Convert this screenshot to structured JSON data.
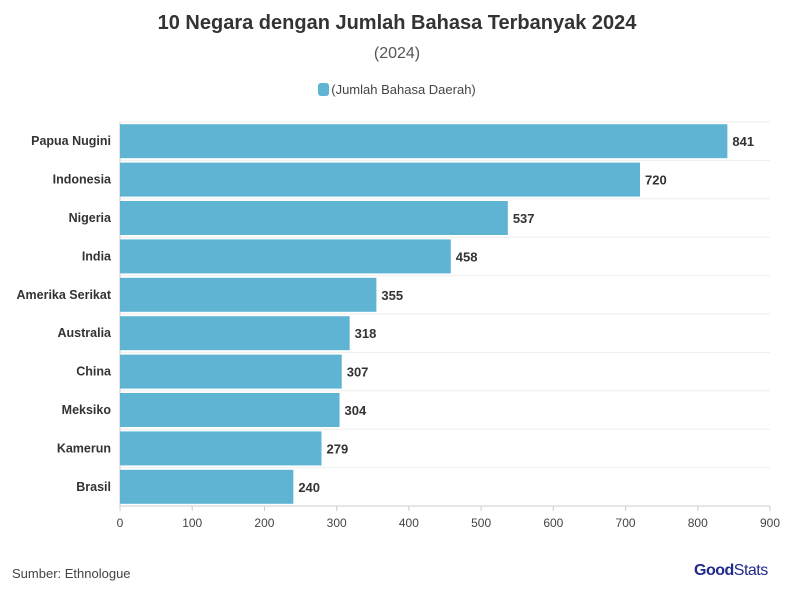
{
  "chart_data": {
    "type": "bar",
    "title": "10 Negara dengan Jumlah Bahasa Terbanyak 2024",
    "subtitle": "(2024)",
    "legend": [
      "(Jumlah Bahasa Daerah)"
    ],
    "legend_placement": "top-center",
    "categories": [
      "Papua Nugini",
      "Indonesia",
      "Nigeria",
      "India",
      "Amerika Serikat",
      "Australia",
      "China",
      "Meksiko",
      "Kamerun",
      "Brasil"
    ],
    "values": [
      841,
      720,
      537,
      458,
      355,
      318,
      307,
      304,
      279,
      240
    ],
    "xlim": [
      0,
      900
    ],
    "xticks": [
      0,
      100,
      200,
      300,
      400,
      500,
      600,
      700,
      800,
      900
    ],
    "bar_color": "#5fb3d3",
    "orientation": "horizontal"
  },
  "footer": {
    "source": "Sumber: Ethnologue",
    "logo_bold": "Good",
    "logo_light": "Stats"
  }
}
